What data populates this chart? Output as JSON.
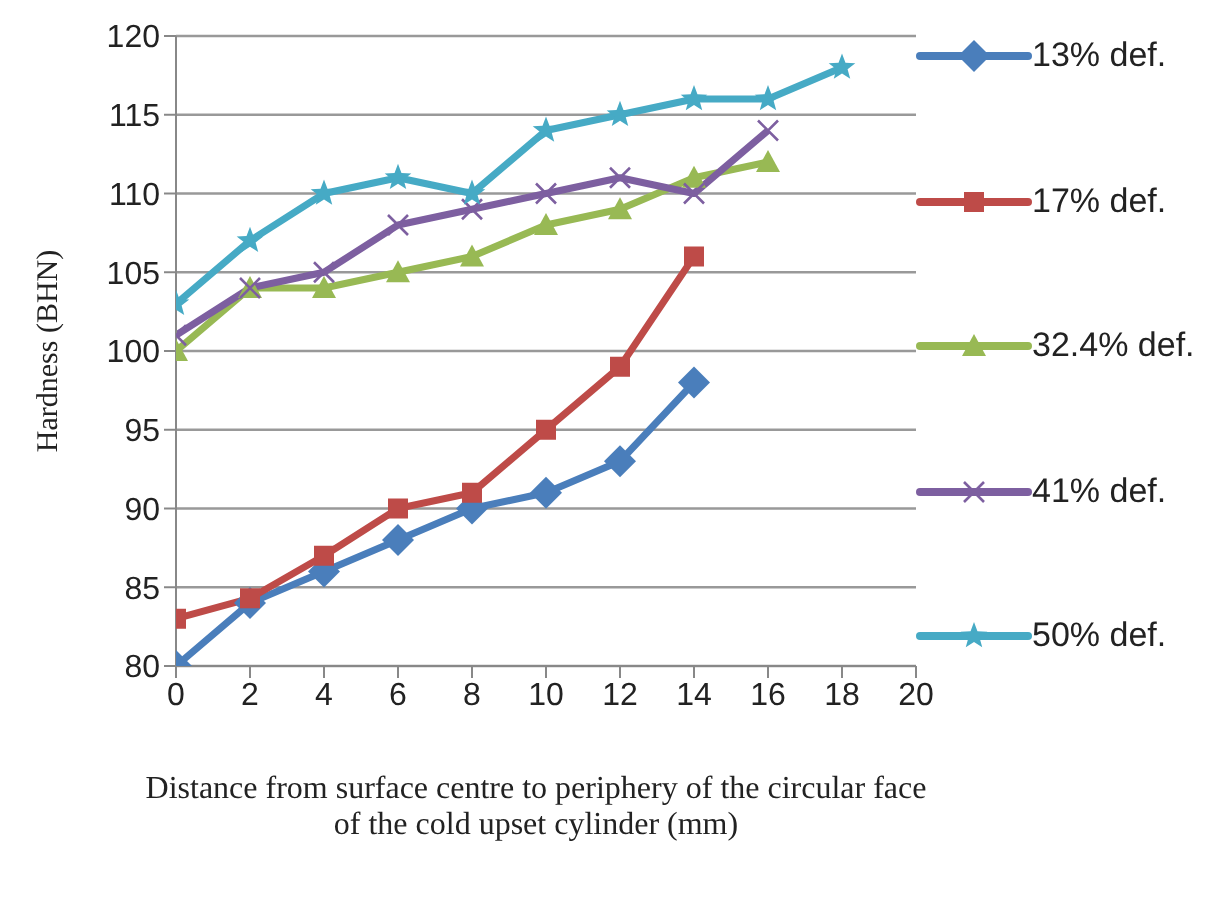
{
  "chart_data": {
    "type": "line",
    "xlabel": "Distance from surface centre to periphery of the circular face of the cold upset cylinder  (mm)",
    "ylabel": "Hardness (BHN)",
    "xlim": [
      0,
      20
    ],
    "xticks": [
      0,
      2,
      4,
      6,
      8,
      10,
      12,
      14,
      16,
      18,
      20
    ],
    "ylim": [
      80,
      120
    ],
    "yticks": [
      80,
      85,
      90,
      95,
      100,
      105,
      110,
      115,
      120
    ],
    "grid": "y",
    "legend": "right",
    "series": [
      {
        "name": "13% def.",
        "color": "#4a7ebb",
        "marker": "diamond",
        "x": [
          0,
          2,
          4,
          6,
          8,
          10,
          12,
          14
        ],
        "values": [
          80,
          84,
          86,
          88,
          90,
          91,
          93,
          98
        ]
      },
      {
        "name": "17% def.",
        "color": "#be4b48",
        "marker": "square",
        "x": [
          0,
          2,
          4,
          6,
          8,
          10,
          12,
          14
        ],
        "values": [
          83,
          84.3,
          87,
          90,
          91,
          95,
          99,
          106
        ]
      },
      {
        "name": "32.4% def.",
        "color": "#98b954",
        "marker": "triangle",
        "x": [
          0,
          2,
          4,
          6,
          8,
          10,
          12,
          14,
          16
        ],
        "values": [
          100,
          104,
          104,
          105,
          106,
          108,
          109,
          111,
          112
        ]
      },
      {
        "name": "41% def.",
        "color": "#7d5fa0",
        "marker": "cross",
        "x": [
          0,
          2,
          4,
          6,
          8,
          10,
          12,
          14,
          16
        ],
        "values": [
          101,
          104,
          105,
          108,
          109,
          110,
          111,
          110,
          114
        ]
      },
      {
        "name": "50% def.",
        "color": "#46aac5",
        "marker": "star",
        "x": [
          0,
          2,
          4,
          6,
          8,
          10,
          12,
          14,
          16,
          18
        ],
        "values": [
          103,
          107,
          110,
          111,
          110,
          114,
          115,
          116,
          116,
          118
        ]
      }
    ]
  }
}
